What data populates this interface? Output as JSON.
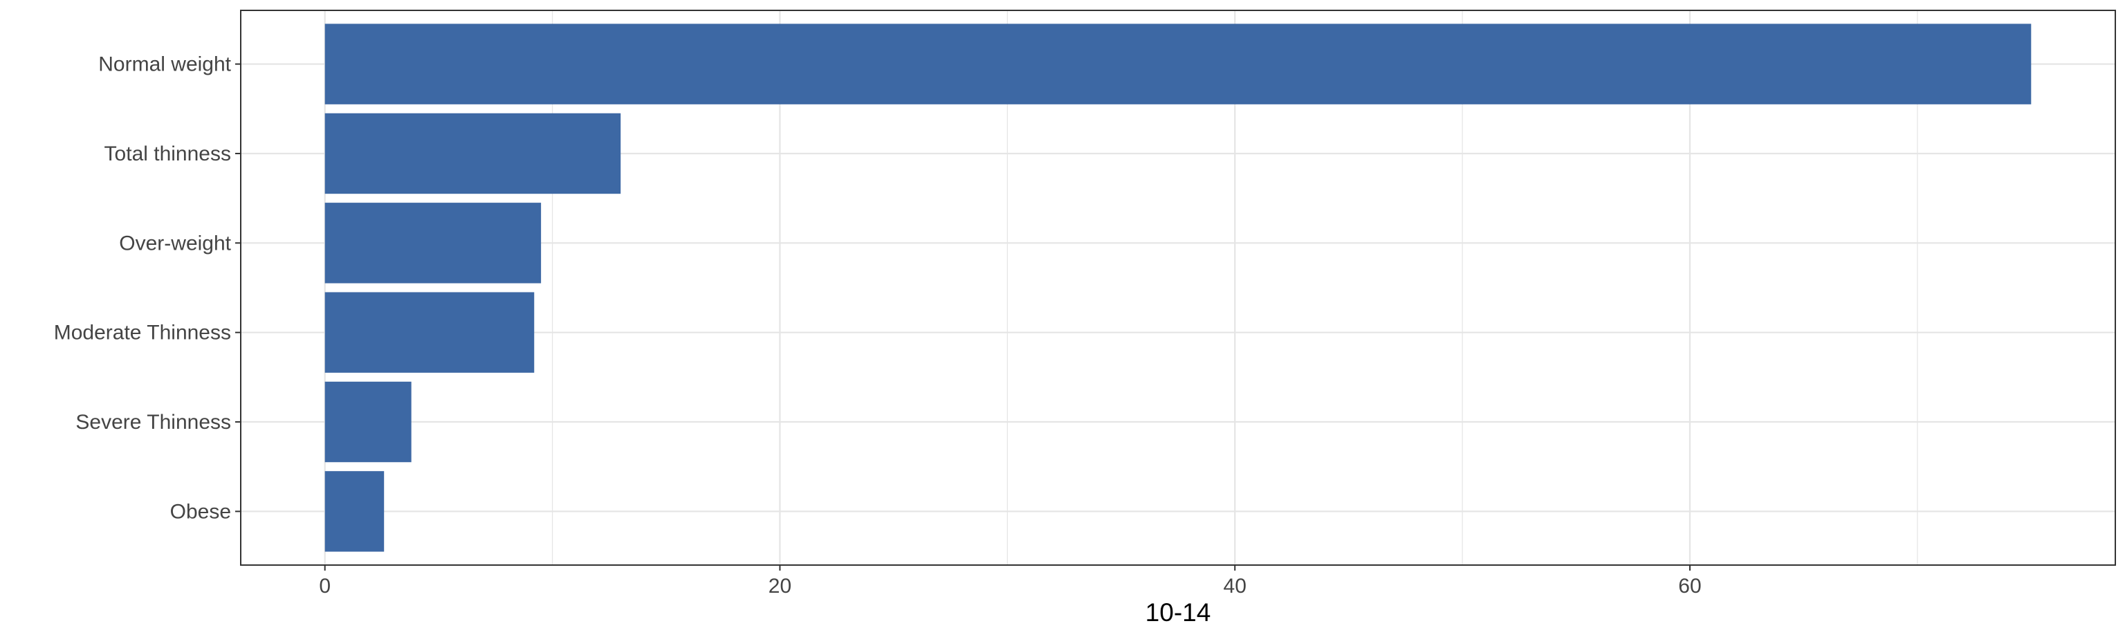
{
  "chart_data": {
    "type": "bar",
    "orientation": "horizontal",
    "categories": [
      "Normal weight",
      "Total thinness",
      "Over-weight",
      "Moderate Thinness",
      "Severe Thinness",
      "Obese"
    ],
    "values": [
      75.0,
      13.0,
      9.5,
      9.2,
      3.8,
      2.6
    ],
    "title": "",
    "xlabel": "10-14",
    "ylabel": "",
    "xlim": [
      -3.7,
      78.7
    ],
    "xticks": [
      "0",
      "20",
      "40",
      "60"
    ],
    "xtick_values": [
      0,
      20,
      40,
      60
    ],
    "minor_grid_values": [
      10,
      30,
      50,
      70
    ],
    "grid": true,
    "legend": "none",
    "bar_color": "#3D68A4",
    "grid_color": "#E5E5E5",
    "panel_border_color": "#333333"
  }
}
